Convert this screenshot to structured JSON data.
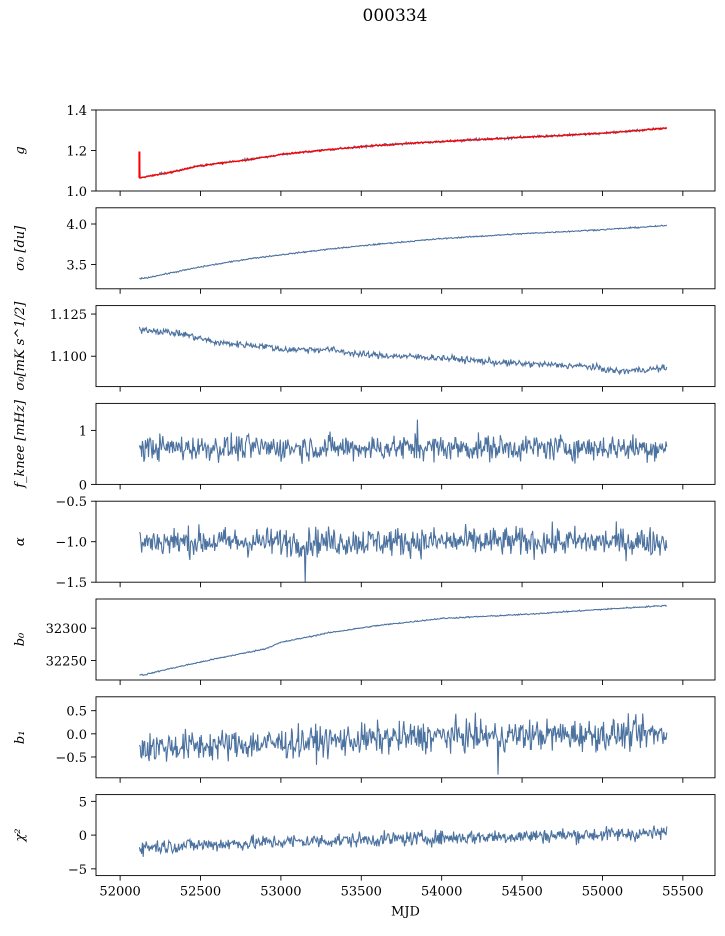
{
  "title": "000334",
  "style": {
    "line_color": "#4c72a0",
    "highlight_color": "#ff0000",
    "axes_color": "#000000"
  },
  "chart_data": {
    "type": "line",
    "xlabel": "MJD",
    "xlim": [
      51850,
      55700
    ],
    "xticks": [
      52000,
      52500,
      53000,
      53500,
      54000,
      54500,
      55000,
      55500
    ],
    "x_range": [
      52120,
      55400
    ],
    "panels": [
      {
        "ylabel": "g",
        "ylim": [
          1.0,
          1.4
        ],
        "yticks": [
          1.0,
          1.2,
          1.4
        ],
        "ytick_labels": [
          "1.0",
          "1.2",
          "1.4"
        ],
        "trend": [
          [
            52120,
            1.065
          ],
          [
            52300,
            1.09
          ],
          [
            52500,
            1.125
          ],
          [
            52800,
            1.155
          ],
          [
            53000,
            1.18
          ],
          [
            53300,
            1.205
          ],
          [
            53600,
            1.225
          ],
          [
            54000,
            1.245
          ],
          [
            54500,
            1.265
          ],
          [
            55000,
            1.285
          ],
          [
            55400,
            1.31
          ]
        ],
        "noise": 0.003,
        "overlay": "red",
        "spike": {
          "x": 52120,
          "y": 1.195
        }
      },
      {
        "ylabel": "σ₀ [du]",
        "ylim": [
          3.2,
          4.2
        ],
        "yticks": [
          3.5,
          4.0
        ],
        "ytick_labels": [
          "3.5",
          "4.0"
        ],
        "trend": [
          [
            52150,
            3.33
          ],
          [
            52300,
            3.39
          ],
          [
            52500,
            3.47
          ],
          [
            52800,
            3.57
          ],
          [
            53000,
            3.62
          ],
          [
            53300,
            3.69
          ],
          [
            53600,
            3.75
          ],
          [
            54000,
            3.82
          ],
          [
            54500,
            3.88
          ],
          [
            55000,
            3.93
          ],
          [
            55400,
            3.98
          ]
        ],
        "noise": 0.004
      },
      {
        "ylabel": "σ₀[mK s^1/2]",
        "ylim": [
          1.082,
          1.13
        ],
        "yticks": [
          1.1,
          1.125
        ],
        "ytick_labels": [
          "1.100",
          "1.125"
        ],
        "trend": [
          [
            52150,
            1.116
          ],
          [
            52400,
            1.113
          ],
          [
            52600,
            1.108
          ],
          [
            52900,
            1.106
          ],
          [
            53000,
            1.104
          ],
          [
            53300,
            1.104
          ],
          [
            53500,
            1.101
          ],
          [
            54000,
            1.099
          ],
          [
            54400,
            1.096
          ],
          [
            54900,
            1.094
          ],
          [
            55100,
            1.091
          ],
          [
            55400,
            1.093
          ]
        ],
        "noise": 0.001
      },
      {
        "ylabel": "f_knee [mHz]",
        "ylim": [
          0,
          1.5
        ],
        "yticks": [
          0,
          1
        ],
        "ytick_labels": [
          "0",
          "1"
        ],
        "trend": [
          [
            52120,
            0.68
          ],
          [
            55400,
            0.68
          ]
        ],
        "noise": 0.12,
        "spike": {
          "x": 53850,
          "y": 1.2
        }
      },
      {
        "ylabel": "α",
        "ylim": [
          -1.5,
          -0.5
        ],
        "yticks": [
          -1.5,
          -1.0,
          -0.5
        ],
        "ytick_labels": [
          "−1.5",
          "−1.0",
          "−0.5"
        ],
        "trend": [
          [
            52120,
            -1.0
          ],
          [
            55400,
            -1.0
          ]
        ],
        "noise": 0.09,
        "spike": {
          "x": 53150,
          "y": -1.5
        }
      },
      {
        "ylabel": "b₀",
        "ylim": [
          32220,
          32345
        ],
        "yticks": [
          32250,
          32300
        ],
        "ytick_labels": [
          "32250",
          "32300"
        ],
        "trend": [
          [
            52150,
            32228
          ],
          [
            52300,
            32237
          ],
          [
            52600,
            32253
          ],
          [
            52900,
            32268
          ],
          [
            53000,
            32278
          ],
          [
            53300,
            32293
          ],
          [
            53600,
            32304
          ],
          [
            54000,
            32315
          ],
          [
            54500,
            32321
          ],
          [
            55000,
            32329
          ],
          [
            55400,
            32335
          ]
        ],
        "noise": 0.5
      },
      {
        "ylabel": "b₁",
        "ylim": [
          -0.95,
          0.8
        ],
        "yticks": [
          -0.5,
          0.0,
          0.5
        ],
        "ytick_labels": [
          "−0.5",
          "0.0",
          "0.5"
        ],
        "trend": [
          [
            52120,
            -0.3
          ],
          [
            53000,
            -0.2
          ],
          [
            54000,
            -0.05
          ],
          [
            55400,
            0.0
          ]
        ],
        "noise": 0.17,
        "spike": {
          "x": 54350,
          "y": -0.88
        }
      },
      {
        "ylabel": "χ²",
        "ylim": [
          -6,
          6
        ],
        "yticks": [
          -5,
          0,
          5
        ],
        "ytick_labels": [
          "−5",
          "0",
          "5"
        ],
        "trend": [
          [
            52120,
            -1.8
          ],
          [
            53000,
            -1.0
          ],
          [
            54000,
            -0.4
          ],
          [
            55400,
            0.3
          ]
        ],
        "noise": 0.55
      }
    ]
  }
}
